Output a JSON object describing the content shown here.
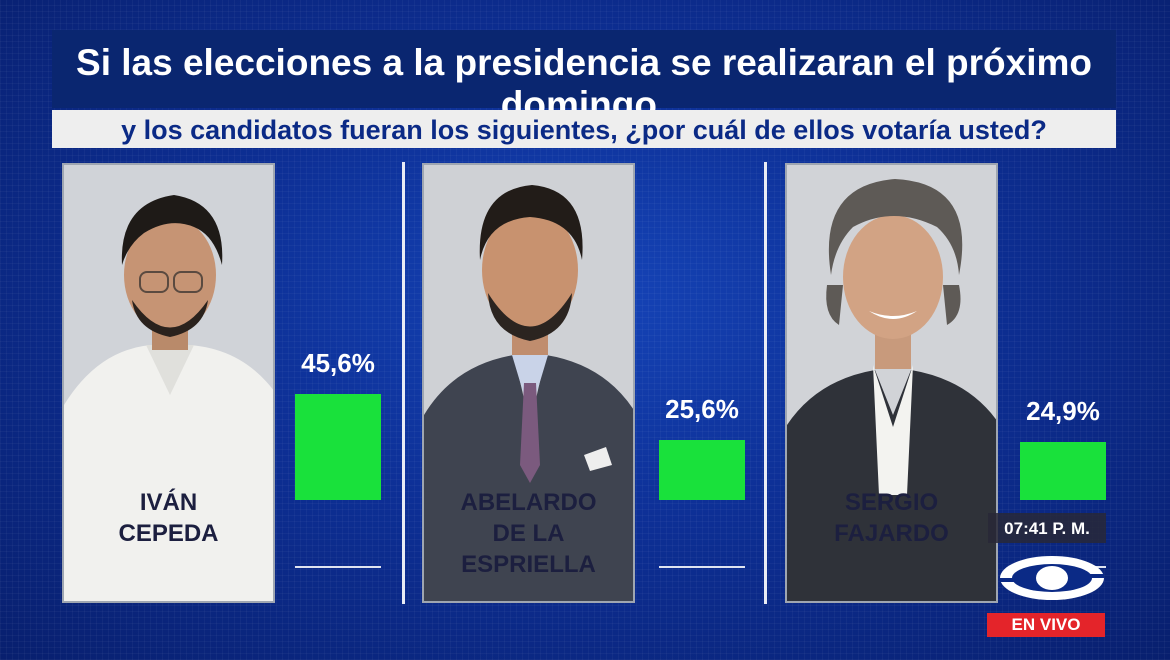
{
  "question": {
    "line1": "Si las elecciones a la presidencia se realizaran el próximo domingo,",
    "line2": "y los candidatos fueran los siguientes, ¿por cuál de ellos votaría usted?"
  },
  "candidates": [
    {
      "name_line1": "IVÁN",
      "name_line2": "CEPEDA",
      "percent_label": "45,6%"
    },
    {
      "name_line1": "ABELARDO",
      "name_line2": "DE LA ESPRIELLA",
      "percent_label": "25,6%"
    },
    {
      "name_line1": "SERGIO",
      "name_line2": "FAJARDO",
      "percent_label": "24,9%"
    }
  ],
  "chart_data": {
    "type": "bar",
    "categories": [
      "IVÁN CEPEDA",
      "ABELARDO DE LA ESPRIELLA",
      "SERGIO FAJARDO"
    ],
    "values": [
      45.6,
      25.6,
      24.9
    ],
    "title": "Si las elecciones a la presidencia se realizaran el próximo domingo, y los candidatos fueran los siguientes, ¿por cuál de ellos votaría usted?",
    "xlabel": "",
    "ylabel": "",
    "unit": "%",
    "bar_color": "#19e13b",
    "grid": false
  },
  "broadcast": {
    "time": "07:41 P. M.",
    "live_label": "EN VIVO",
    "logo_icon": "caracol-logo-icon",
    "live_color": "#e4242a"
  },
  "colors": {
    "background": "#0b2a86",
    "bar": "#19e13b",
    "card": "#c9cdd4"
  }
}
